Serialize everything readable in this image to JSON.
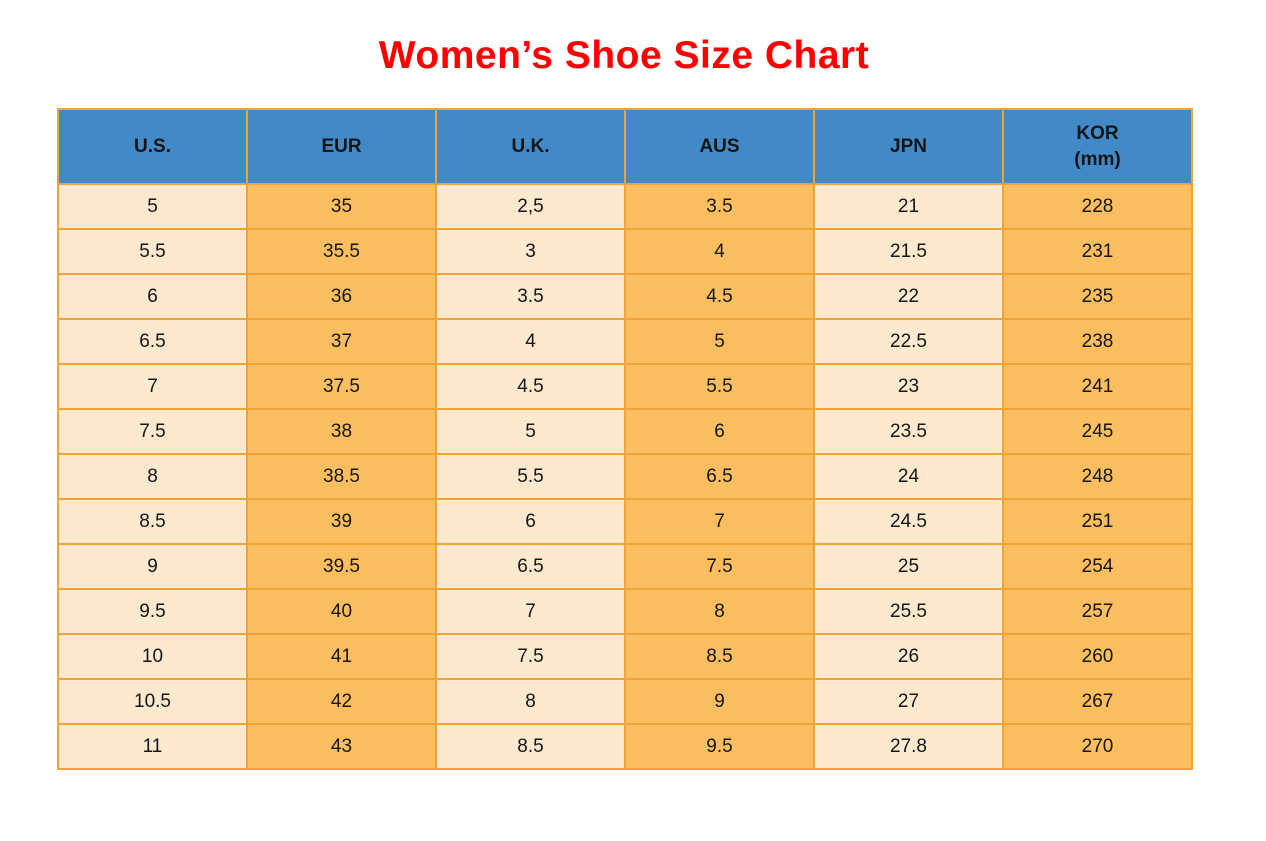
{
  "page_title": "Women’s Shoe Size Chart",
  "colors": {
    "title_red": "#FE0000",
    "header_blue": "#4289C7",
    "cell_orange": "#FCBE5F",
    "cell_cream": "#FDE9CE",
    "border_orange": "#F1A436",
    "text_black": "#151515"
  },
  "chart_data": {
    "type": "table",
    "title": "Women’s Shoe Size Chart",
    "columns": [
      "U.S.",
      "EUR",
      "U.K.",
      "AUS",
      "JPN",
      "KOR\n(mm)"
    ],
    "column_fills": [
      "cream",
      "orange",
      "cream",
      "orange",
      "cream",
      "orange"
    ],
    "rows": [
      [
        "5",
        "35",
        "2,5",
        "3.5",
        "21",
        "228"
      ],
      [
        "5.5",
        "35.5",
        "3",
        "4",
        "21.5",
        "231"
      ],
      [
        "6",
        "36",
        "3.5",
        "4.5",
        "22",
        "235"
      ],
      [
        "6.5",
        "37",
        "4",
        "5",
        "22.5",
        "238"
      ],
      [
        "7",
        "37.5",
        "4.5",
        "5.5",
        "23",
        "241"
      ],
      [
        "7.5",
        "38",
        "5",
        "6",
        "23.5",
        "245"
      ],
      [
        "8",
        "38.5",
        "5.5",
        "6.5",
        "24",
        "248"
      ],
      [
        "8.5",
        "39",
        "6",
        "7",
        "24.5",
        "251"
      ],
      [
        "9",
        "39.5",
        "6.5",
        "7.5",
        "25",
        "254"
      ],
      [
        "9.5",
        "40",
        "7",
        "8",
        "25.5",
        "257"
      ],
      [
        "10",
        "41",
        "7.5",
        "8.5",
        "26",
        "260"
      ],
      [
        "10.5",
        "42",
        "8",
        "9",
        "27",
        "267"
      ],
      [
        "11",
        "43",
        "8.5",
        "9.5",
        "27.8",
        "270"
      ]
    ]
  }
}
